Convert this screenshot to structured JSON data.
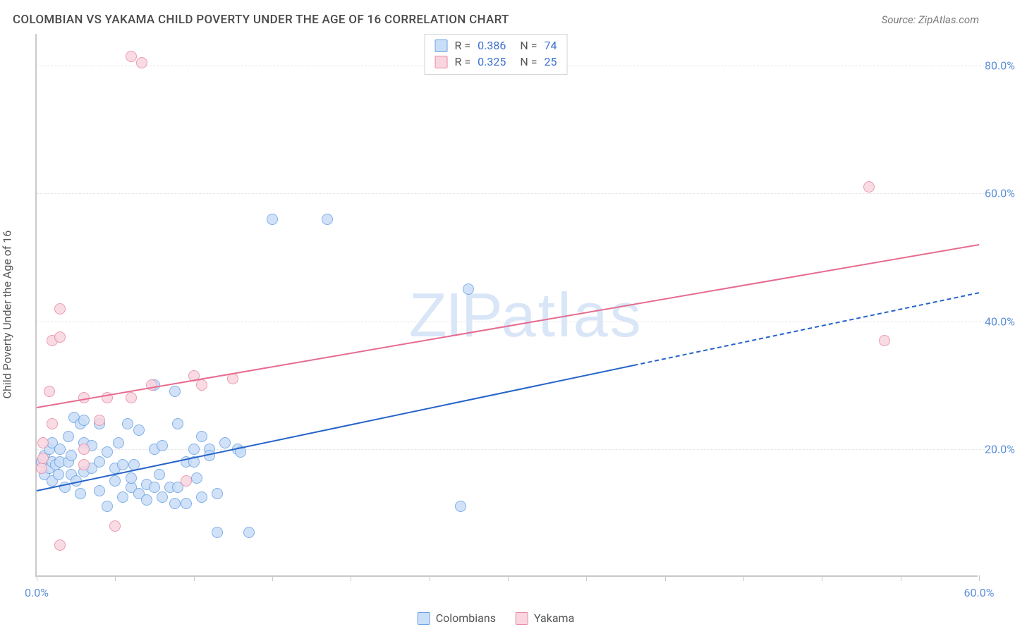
{
  "title": "COLOMBIAN VS YAKAMA CHILD POVERTY UNDER THE AGE OF 16 CORRELATION CHART",
  "source": "Source: ZipAtlas.com",
  "y_axis_label": "Child Poverty Under the Age of 16",
  "watermark": {
    "zip": "ZIP",
    "atlas": "atlas"
  },
  "chart": {
    "type": "scatter",
    "background_color": "#ffffff",
    "grid_color": "#e5e5e5",
    "axis_color": "#c9c9c9",
    "tick_label_color": "#5b8fd6",
    "tick_label_fontsize": 16,
    "xlim": [
      0,
      60
    ],
    "ylim": [
      0,
      85
    ],
    "x_ticks": [
      0,
      5,
      10,
      15,
      20,
      25,
      30,
      35,
      40,
      45,
      50,
      55,
      60
    ],
    "x_tick_labels": {
      "0": "0.0%",
      "60": "60.0%"
    },
    "y_ticks": [
      20,
      40,
      60,
      80
    ],
    "y_tick_labels": {
      "20": "20.0%",
      "40": "40.0%",
      "60": "60.0%",
      "80": "80.0%"
    },
    "marker_radius": 8,
    "marker_stroke_width": 1.5,
    "series": {
      "colombians": {
        "label": "Colombians",
        "fill": "#c9def7",
        "stroke": "#6aa2e3",
        "points": [
          [
            0.3,
            18
          ],
          [
            0.5,
            16
          ],
          [
            0.5,
            19
          ],
          [
            0.8,
            17
          ],
          [
            0.8,
            20
          ],
          [
            1.0,
            18
          ],
          [
            1.0,
            15
          ],
          [
            1.0,
            21
          ],
          [
            1.2,
            17.5
          ],
          [
            1.4,
            16
          ],
          [
            1.5,
            20
          ],
          [
            1.5,
            18
          ],
          [
            1.8,
            14
          ],
          [
            2.0,
            22
          ],
          [
            2.0,
            18
          ],
          [
            2.2,
            19
          ],
          [
            2.2,
            16
          ],
          [
            2.4,
            25
          ],
          [
            2.5,
            15
          ],
          [
            2.8,
            24
          ],
          [
            2.8,
            13
          ],
          [
            3.0,
            24.5
          ],
          [
            3.0,
            21
          ],
          [
            3.0,
            16.5
          ],
          [
            3.5,
            20.5
          ],
          [
            3.5,
            17
          ],
          [
            4.0,
            18
          ],
          [
            4.0,
            13.5
          ],
          [
            4.0,
            24
          ],
          [
            4.5,
            11
          ],
          [
            4.5,
            19.5
          ],
          [
            5.0,
            15
          ],
          [
            5.0,
            17
          ],
          [
            5.2,
            21
          ],
          [
            5.5,
            17.5
          ],
          [
            5.5,
            12.5
          ],
          [
            5.8,
            24
          ],
          [
            6.0,
            14
          ],
          [
            6.0,
            15.5
          ],
          [
            6.2,
            17.5
          ],
          [
            6.5,
            13
          ],
          [
            6.5,
            23
          ],
          [
            7.0,
            14.5
          ],
          [
            7.0,
            12
          ],
          [
            7.5,
            20
          ],
          [
            7.5,
            14
          ],
          [
            7.5,
            30
          ],
          [
            7.8,
            16
          ],
          [
            8.0,
            12.5
          ],
          [
            8.0,
            20.5
          ],
          [
            8.5,
            14
          ],
          [
            8.8,
            29
          ],
          [
            8.8,
            11.5
          ],
          [
            9.0,
            24
          ],
          [
            9.0,
            14
          ],
          [
            9.5,
            18
          ],
          [
            9.5,
            11.5
          ],
          [
            10.0,
            20
          ],
          [
            10.0,
            18
          ],
          [
            10.2,
            15.5
          ],
          [
            10.5,
            12.5
          ],
          [
            10.5,
            22
          ],
          [
            11.0,
            20
          ],
          [
            11.0,
            19
          ],
          [
            11.5,
            13
          ],
          [
            11.5,
            7
          ],
          [
            12.0,
            21
          ],
          [
            12.8,
            20
          ],
          [
            13.0,
            19.5
          ],
          [
            13.5,
            7
          ],
          [
            15.0,
            56
          ],
          [
            18.5,
            56
          ],
          [
            27.0,
            11
          ],
          [
            27.5,
            45
          ]
        ],
        "trend": {
          "color": "#2563c9",
          "width": 2,
          "x1": 0,
          "y1": 13.5,
          "x2": 60,
          "y2": 44.5,
          "solid_until_x": 38
        }
      },
      "yakama": {
        "label": "Yakama",
        "fill": "#f9d5df",
        "stroke": "#e88aa4",
        "points": [
          [
            0.3,
            17
          ],
          [
            0.4,
            21
          ],
          [
            0.4,
            18.5
          ],
          [
            0.8,
            29
          ],
          [
            1.0,
            37
          ],
          [
            1.0,
            24
          ],
          [
            1.5,
            37.5
          ],
          [
            1.5,
            42
          ],
          [
            1.5,
            5
          ],
          [
            3.0,
            20
          ],
          [
            3.0,
            28
          ],
          [
            3.0,
            17.5
          ],
          [
            4.0,
            24.5
          ],
          [
            4.5,
            28
          ],
          [
            5.0,
            8
          ],
          [
            6.0,
            81.5
          ],
          [
            6.0,
            28
          ],
          [
            6.7,
            80.5
          ],
          [
            7.3,
            30
          ],
          [
            9.5,
            15
          ],
          [
            10.0,
            31.5
          ],
          [
            10.5,
            30
          ],
          [
            12.5,
            31
          ],
          [
            53.0,
            61
          ],
          [
            54.0,
            37
          ]
        ],
        "trend": {
          "color": "#e66b8f",
          "width": 2,
          "x1": 0,
          "y1": 26.5,
          "x2": 60,
          "y2": 52,
          "solid_until_x": 60
        }
      }
    }
  },
  "legend_top": {
    "rows": [
      {
        "swatch": "colombians",
        "r_label": "R =",
        "r_value": "0.386",
        "n_label": "N =",
        "n_value": "74"
      },
      {
        "swatch": "yakama",
        "r_label": "R =",
        "r_value": "0.325",
        "n_label": "N =",
        "n_value": "25"
      }
    ]
  },
  "legend_bottom": [
    {
      "swatch": "colombians",
      "label": "Colombians"
    },
    {
      "swatch": "yakama",
      "label": "Yakama"
    }
  ]
}
